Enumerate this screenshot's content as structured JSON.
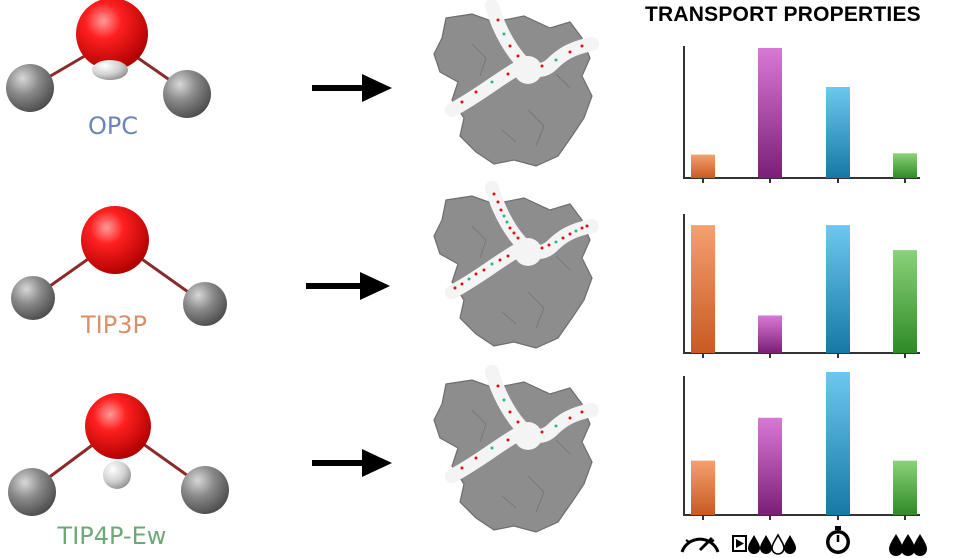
{
  "header": {
    "title": "TRANSPORT PROPERTIES"
  },
  "models": [
    {
      "name": "OPC",
      "color": "#6b86b5"
    },
    {
      "name": "TIP3P",
      "color": "#d9906a"
    },
    {
      "name": "TIP4P-Ew",
      "color": "#6fa877"
    }
  ],
  "chart_data": {
    "type": "bar",
    "title": "TRANSPORT PROPERTIES",
    "categories": [
      "speed-gauge-icon",
      "diffusion-molecules-icon",
      "timer-icon",
      "water-drops-icon"
    ],
    "category_colors": [
      "#e8743a",
      "#a13aa0",
      "#2ca3d8",
      "#4fae3e"
    ],
    "ylim": [
      0,
      1
    ],
    "panels": [
      {
        "model": "OPC",
        "values": [
          0.18,
          1.0,
          0.7,
          0.19
        ]
      },
      {
        "model": "TIP3P",
        "values": [
          0.92,
          0.27,
          0.92,
          0.74
        ]
      },
      {
        "model": "TIP4P-Ew",
        "values": [
          0.38,
          0.68,
          1.0,
          0.38
        ]
      }
    ]
  }
}
